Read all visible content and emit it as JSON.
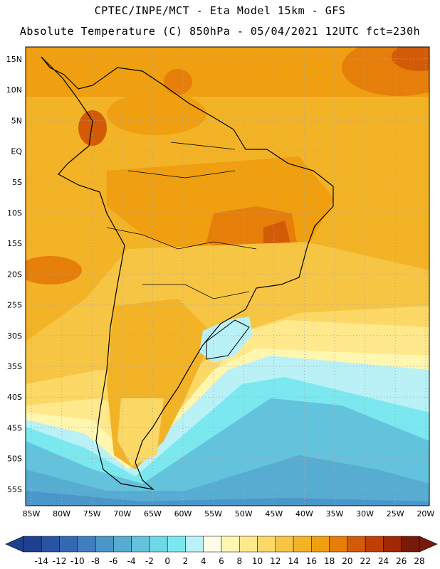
{
  "header": {
    "line1": "CPTEC/INPE/MCT -  Eta Model 15km - GFS",
    "line2": "Absolute Temperature (C) 850hPa - 05/04/2021 12UTC fct=230h"
  },
  "lat_labels": [
    "15N",
    "10N",
    "5N",
    "EQ",
    "5S",
    "10S",
    "15S",
    "20S",
    "25S",
    "30S",
    "35S",
    "40S",
    "45S",
    "50S",
    "55S"
  ],
  "lon_labels": [
    "85W",
    "80W",
    "75W",
    "70W",
    "65W",
    "60W",
    "55W",
    "50W",
    "45W",
    "40W",
    "35W",
    "30W",
    "25W",
    "20W"
  ],
  "colorbar": {
    "ticks": [
      "-14",
      "-12",
      "-10",
      "-8",
      "-6",
      "-4",
      "-2",
      "0",
      "2",
      "4",
      "6",
      "8",
      "10",
      "12",
      "14",
      "16",
      "18",
      "20",
      "22",
      "24",
      "26",
      "28"
    ],
    "colors": [
      "#1f3f8f",
      "#2a54a3",
      "#3568b3",
      "#3f7fc0",
      "#4b96c9",
      "#57acd2",
      "#63c3dc",
      "#6fd8e6",
      "#7be8ef",
      "#b9f1f7",
      "#fffbe8",
      "#fff6b0",
      "#ffe98c",
      "#fcd866",
      "#f7c544",
      "#f3b326",
      "#ef9f10",
      "#e67e0a",
      "#d35a06",
      "#bf3e05",
      "#a02804",
      "#781a0a"
    ]
  }
}
